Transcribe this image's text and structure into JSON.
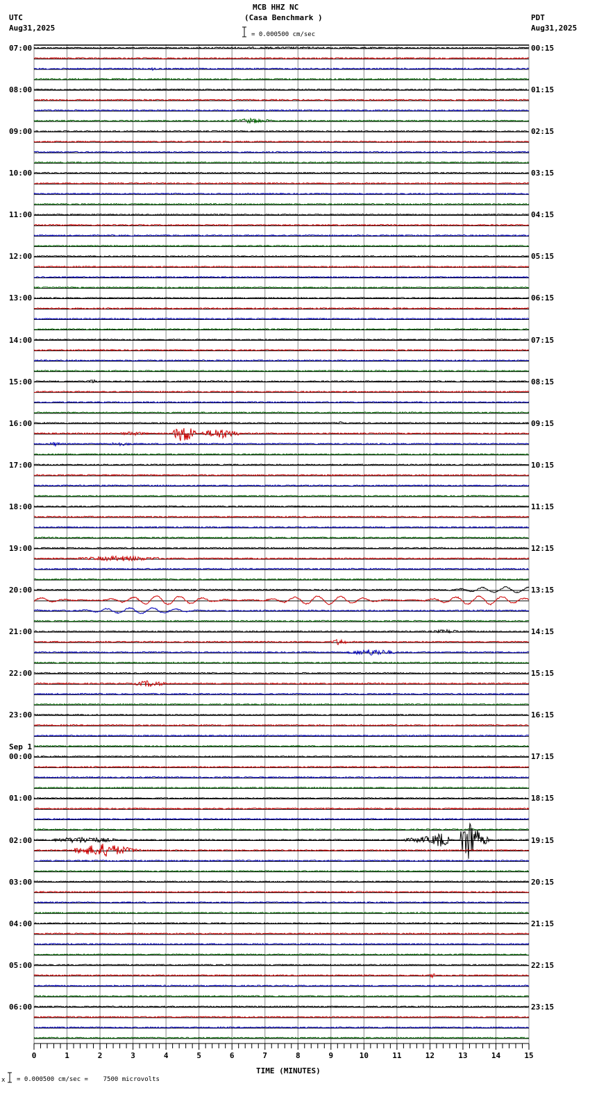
{
  "header": {
    "station": "MCB HHZ NC",
    "location": "(Casa Benchmark )",
    "left_tz": "UTC",
    "left_date": "Aug31,2025",
    "right_tz": "PDT",
    "right_date": "Aug31,2025",
    "scale_text": "= 0.000500 cm/sec"
  },
  "footer": {
    "scale_text": "= 0.000500 cm/sec =    7500 microvolts",
    "prefix_glyph": "x"
  },
  "chart_data": {
    "type": "line",
    "title": "MCB HHZ NC (Casa Benchmark )",
    "subtitle": "= 0.000500 cm/sec",
    "xlabel": "TIME (MINUTES)",
    "ylabel": "",
    "xlim": [
      0,
      15
    ],
    "x_ticks": [
      "0",
      "1",
      "2",
      "3",
      "4",
      "5",
      "6",
      "7",
      "8",
      "9",
      "10",
      "11",
      "12",
      "13",
      "14",
      "15"
    ],
    "grid": true,
    "trace_colors": [
      "#000000",
      "#cc0000",
      "#0000bb",
      "#006600"
    ],
    "traces_per_hour": 4,
    "minutes_per_trace": 15,
    "left_hour_labels": [
      "07:00",
      "08:00",
      "09:00",
      "10:00",
      "11:00",
      "12:00",
      "13:00",
      "14:00",
      "15:00",
      "16:00",
      "17:00",
      "18:00",
      "19:00",
      "20:00",
      "21:00",
      "22:00",
      "23:00",
      "00:00",
      "01:00",
      "02:00",
      "03:00",
      "04:00",
      "05:00",
      "06:00"
    ],
    "left_date_marker": {
      "row_index": 17,
      "label": "Sep 1"
    },
    "right_hour_labels": [
      "00:15",
      "01:15",
      "02:15",
      "03:15",
      "04:15",
      "05:15",
      "06:15",
      "07:15",
      "08:15",
      "09:15",
      "10:15",
      "11:15",
      "12:15",
      "13:15",
      "14:15",
      "15:15",
      "16:15",
      "17:15",
      "18:15",
      "19:15",
      "20:15",
      "21:15",
      "22:15",
      "23:15"
    ],
    "events": [
      {
        "trace": 0,
        "start_min": 0,
        "end_min": 15,
        "amp": 1.5,
        "kind": "noise",
        "note": "07:00 first trace thick"
      },
      {
        "trace": 2,
        "start_min": 3.5,
        "end_min": 3.8,
        "amp": 3,
        "kind": "burst"
      },
      {
        "trace": 7,
        "start_min": 6.0,
        "end_min": 7.2,
        "amp": 4,
        "kind": "burst"
      },
      {
        "trace": 32,
        "start_min": 1.5,
        "end_min": 2.0,
        "amp": 3,
        "kind": "burst"
      },
      {
        "trace": 36,
        "start_min": 9.2,
        "end_min": 9.5,
        "amp": 3,
        "kind": "burst"
      },
      {
        "trace": 37,
        "start_min": 2.5,
        "end_min": 3.5,
        "amp": 3,
        "kind": "burst"
      },
      {
        "trace": 37,
        "start_min": 4.2,
        "end_min": 4.9,
        "amp": 14,
        "kind": "quake"
      },
      {
        "trace": 37,
        "start_min": 5.1,
        "end_min": 6.2,
        "amp": 8,
        "kind": "quake"
      },
      {
        "trace": 38,
        "start_min": 0.4,
        "end_min": 0.9,
        "amp": 3,
        "kind": "burst"
      },
      {
        "trace": 38,
        "start_min": 2.2,
        "end_min": 3.0,
        "amp": 3,
        "kind": "burst"
      },
      {
        "trace": 49,
        "start_min": 1.3,
        "end_min": 4.0,
        "amp": 4,
        "kind": "burst"
      },
      {
        "trace": 52,
        "start_min": 12.5,
        "end_min": 15,
        "amp": 4,
        "kind": "wave"
      },
      {
        "trace": 53,
        "start_min": 0,
        "end_min": 15,
        "amp": 6,
        "kind": "wave"
      },
      {
        "trace": 54,
        "start_min": 0,
        "end_min": 6,
        "amp": 4,
        "kind": "wave"
      },
      {
        "trace": 56,
        "start_min": 12.0,
        "end_min": 13.0,
        "amp": 3,
        "kind": "burst"
      },
      {
        "trace": 57,
        "start_min": 9.0,
        "end_min": 9.5,
        "amp": 5,
        "kind": "burst"
      },
      {
        "trace": 58,
        "start_min": 9.5,
        "end_min": 11.0,
        "amp": 5,
        "kind": "burst"
      },
      {
        "trace": 61,
        "start_min": 3.0,
        "end_min": 4.0,
        "amp": 5,
        "kind": "burst"
      },
      {
        "trace": 77,
        "start_min": 2.1,
        "end_min": 3.4,
        "amp": 4,
        "kind": "burst"
      },
      {
        "trace": 76,
        "start_min": 0.5,
        "end_min": 2.5,
        "amp": 5,
        "kind": "burst"
      },
      {
        "trace": 76,
        "start_min": 11.2,
        "end_min": 12.6,
        "amp": 5,
        "kind": "burst"
      },
      {
        "trace": 76,
        "start_min": 12.0,
        "end_min": 12.6,
        "amp": 12,
        "kind": "quake"
      },
      {
        "trace": 76,
        "start_min": 12.9,
        "end_min": 13.5,
        "amp": 34,
        "kind": "quake"
      },
      {
        "trace": 76,
        "start_min": 13.5,
        "end_min": 13.8,
        "amp": 8,
        "kind": "quake"
      },
      {
        "trace": 77,
        "start_min": 1.2,
        "end_min": 3.0,
        "amp": 10,
        "kind": "quake"
      },
      {
        "trace": 89,
        "start_min": 12.0,
        "end_min": 12.2,
        "amp": 4,
        "kind": "burst"
      }
    ]
  }
}
